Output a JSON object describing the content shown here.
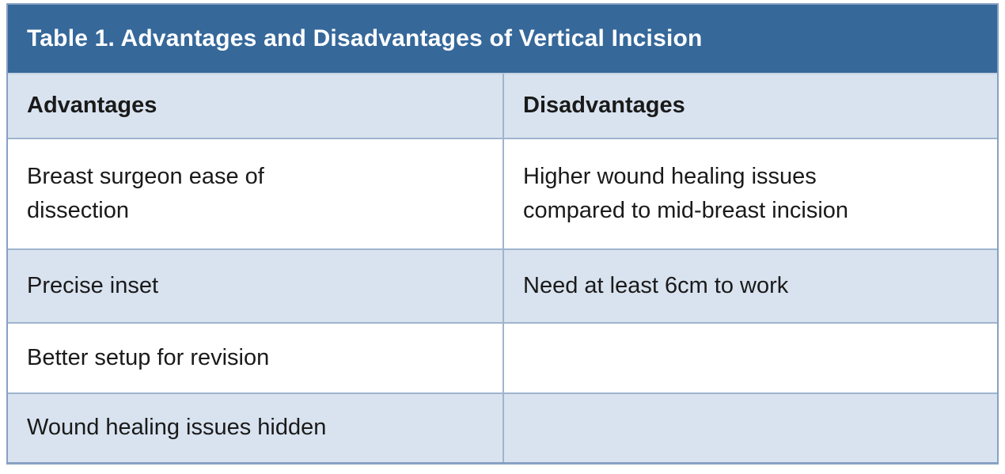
{
  "table": {
    "title": "Table 1. Advantages and Disadvantages of Vertical Incision",
    "columns": {
      "left": "Advantages",
      "right": "Disadvantages"
    },
    "rows": [
      {
        "advantage": "Breast surgeon ease of\ndissection",
        "disadvantage": "Higher wound healing issues\ncompared to mid-breast incision"
      },
      {
        "advantage": "Precise inset",
        "disadvantage": "Need at least 6cm to work"
      },
      {
        "advantage": "Better setup for revision",
        "disadvantage": ""
      },
      {
        "advantage": "Wound healing issues hidden",
        "disadvantage": ""
      }
    ],
    "colors": {
      "title_bg": "#36689a",
      "title_text": "#ffffff",
      "stripe_bg": "#d9e3ef",
      "inner_border": "#9fb4ce",
      "outer_border": "#87a1c2",
      "body_text": "#1a1a1a"
    }
  },
  "chart_data": {
    "type": "table",
    "title": "Table 1. Advantages and Disadvantages of Vertical Incision",
    "columns": [
      "Advantages",
      "Disadvantages"
    ],
    "cells": [
      [
        "Breast surgeon ease of dissection",
        "Higher wound healing issues compared to mid-breast incision"
      ],
      [
        "Precise inset",
        "Need at least 6cm to work"
      ],
      [
        "Better setup for revision",
        ""
      ],
      [
        "Wound healing issues hidden",
        ""
      ]
    ]
  }
}
